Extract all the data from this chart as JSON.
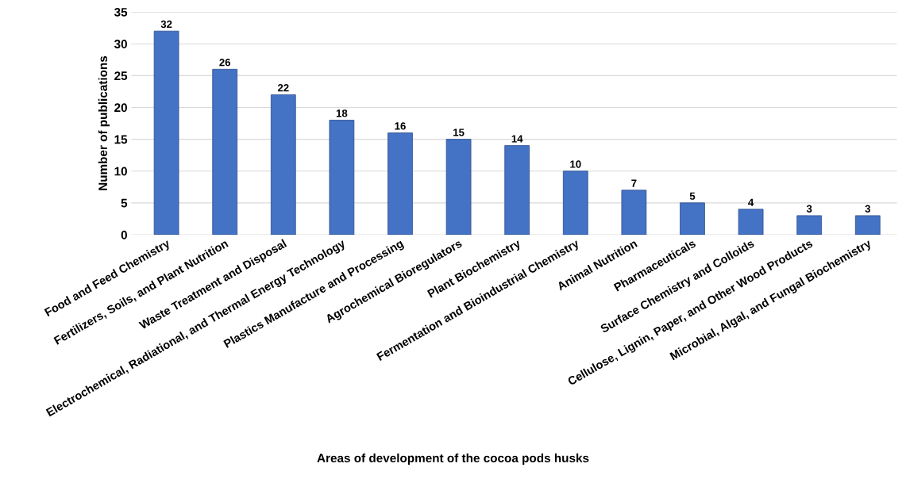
{
  "chart_data": {
    "type": "bar",
    "xlabel": "Areas of development of the cocoa pods husks",
    "ylabel": "Number of publications",
    "categories": [
      "Food and Feed Chemistry",
      "Fertilizers, Soils, and Plant Nutrition",
      "Waste Treatment and Disposal",
      "Electrochemical, Radiational, and Thermal Energy Technology",
      "Plastics Manufacture and Processing",
      "Agrochemical Bioregulators",
      "Plant Biochemistry",
      "Fermentation and Bioindustrial Chemistry",
      "Animal Nutrition",
      "Pharmaceuticals",
      "Surface Chemistry and Colloids",
      "Cellulose, Lignin, Paper, and Other Wood Products",
      "Microbial, Algal, and Fungal Biochemistry"
    ],
    "values": [
      32,
      26,
      22,
      18,
      16,
      15,
      14,
      10,
      7,
      5,
      4,
      3,
      3
    ],
    "color": "#4472c4",
    "ylim": [
      0,
      35
    ],
    "yticks": [
      0,
      5,
      10,
      15,
      20,
      25,
      30,
      35
    ],
    "grid": "y",
    "data_labels": true,
    "legend": false
  }
}
